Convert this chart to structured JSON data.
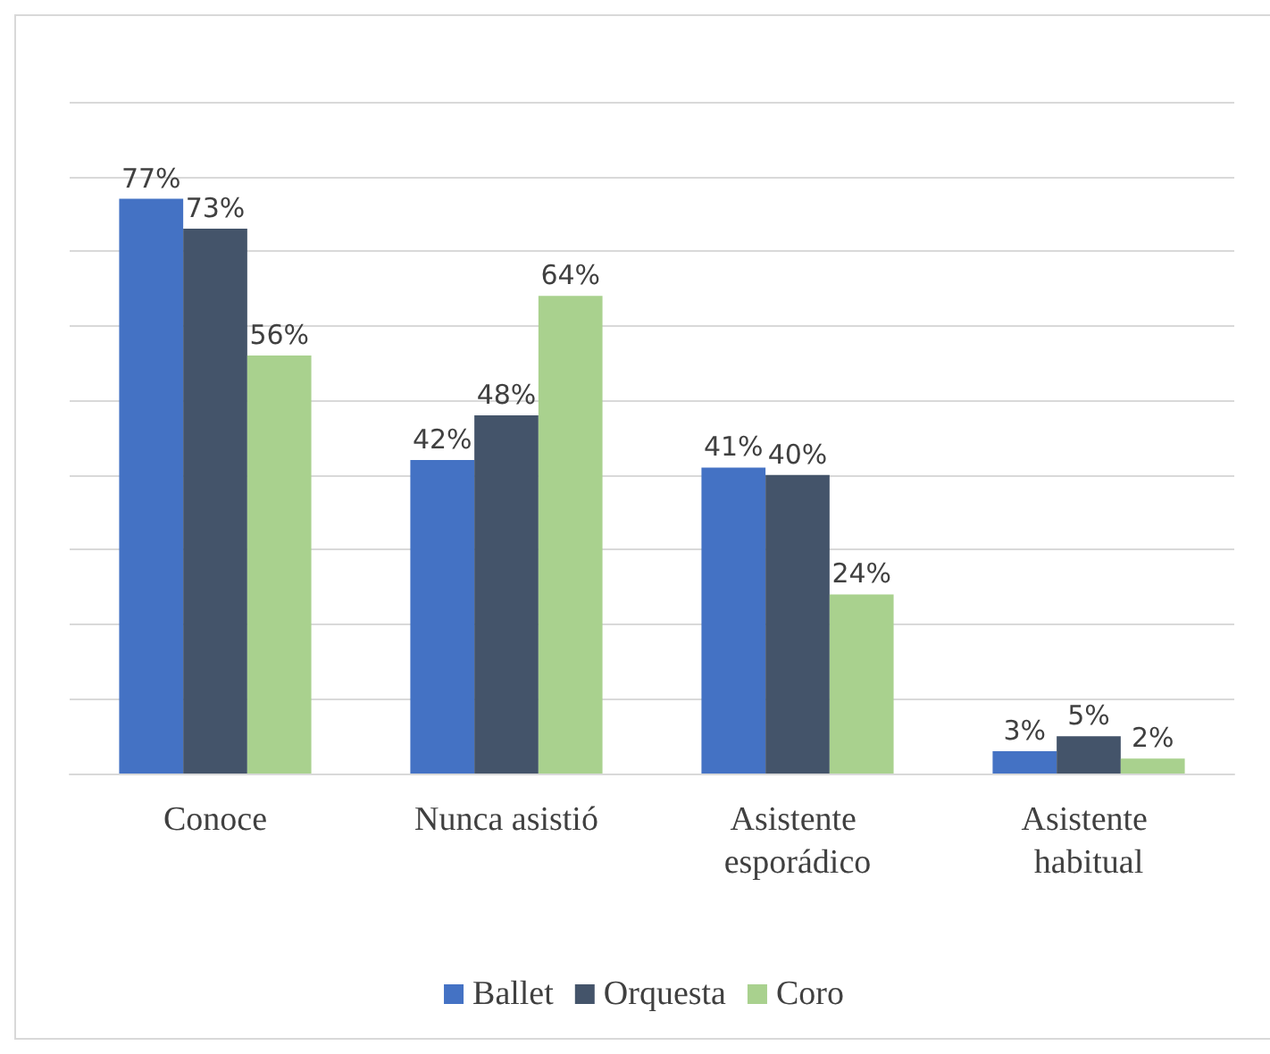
{
  "chart_data": {
    "type": "bar",
    "categories": [
      "Conoce",
      "Nunca asistió",
      "Asistente esporádico",
      "Asistente habitual"
    ],
    "series": [
      {
        "name": "Ballet",
        "color": "#4472c4",
        "values": [
          77,
          42,
          41,
          3
        ],
        "value_labels": [
          "77%",
          "42%",
          "41%",
          "3%"
        ]
      },
      {
        "name": "Orquesta",
        "color": "#44546a",
        "values": [
          73,
          48,
          40,
          5
        ],
        "value_labels": [
          "73%",
          "48%",
          "40%",
          "5%"
        ]
      },
      {
        "name": "Coro",
        "color": "#a9d18e",
        "values": [
          56,
          64,
          24,
          2
        ],
        "value_labels": [
          "56%",
          "64%",
          "24%",
          "2%"
        ]
      }
    ],
    "ylim": [
      0,
      90
    ],
    "yticks": [
      {
        "value": 0,
        "label": null
      },
      {
        "value": 10,
        "label": null
      },
      {
        "value": 20,
        "label": null
      },
      {
        "value": 30,
        "label": null
      },
      {
        "value": 40,
        "label": null
      },
      {
        "value": 50,
        "label": null
      },
      {
        "value": 60,
        "label": null
      },
      {
        "value": 70,
        "label": null
      },
      {
        "value": 80,
        "label": null
      },
      {
        "value": 90,
        "label": null
      }
    ],
    "tick_labels": "x",
    "grid": "y",
    "legend": "bottom"
  }
}
